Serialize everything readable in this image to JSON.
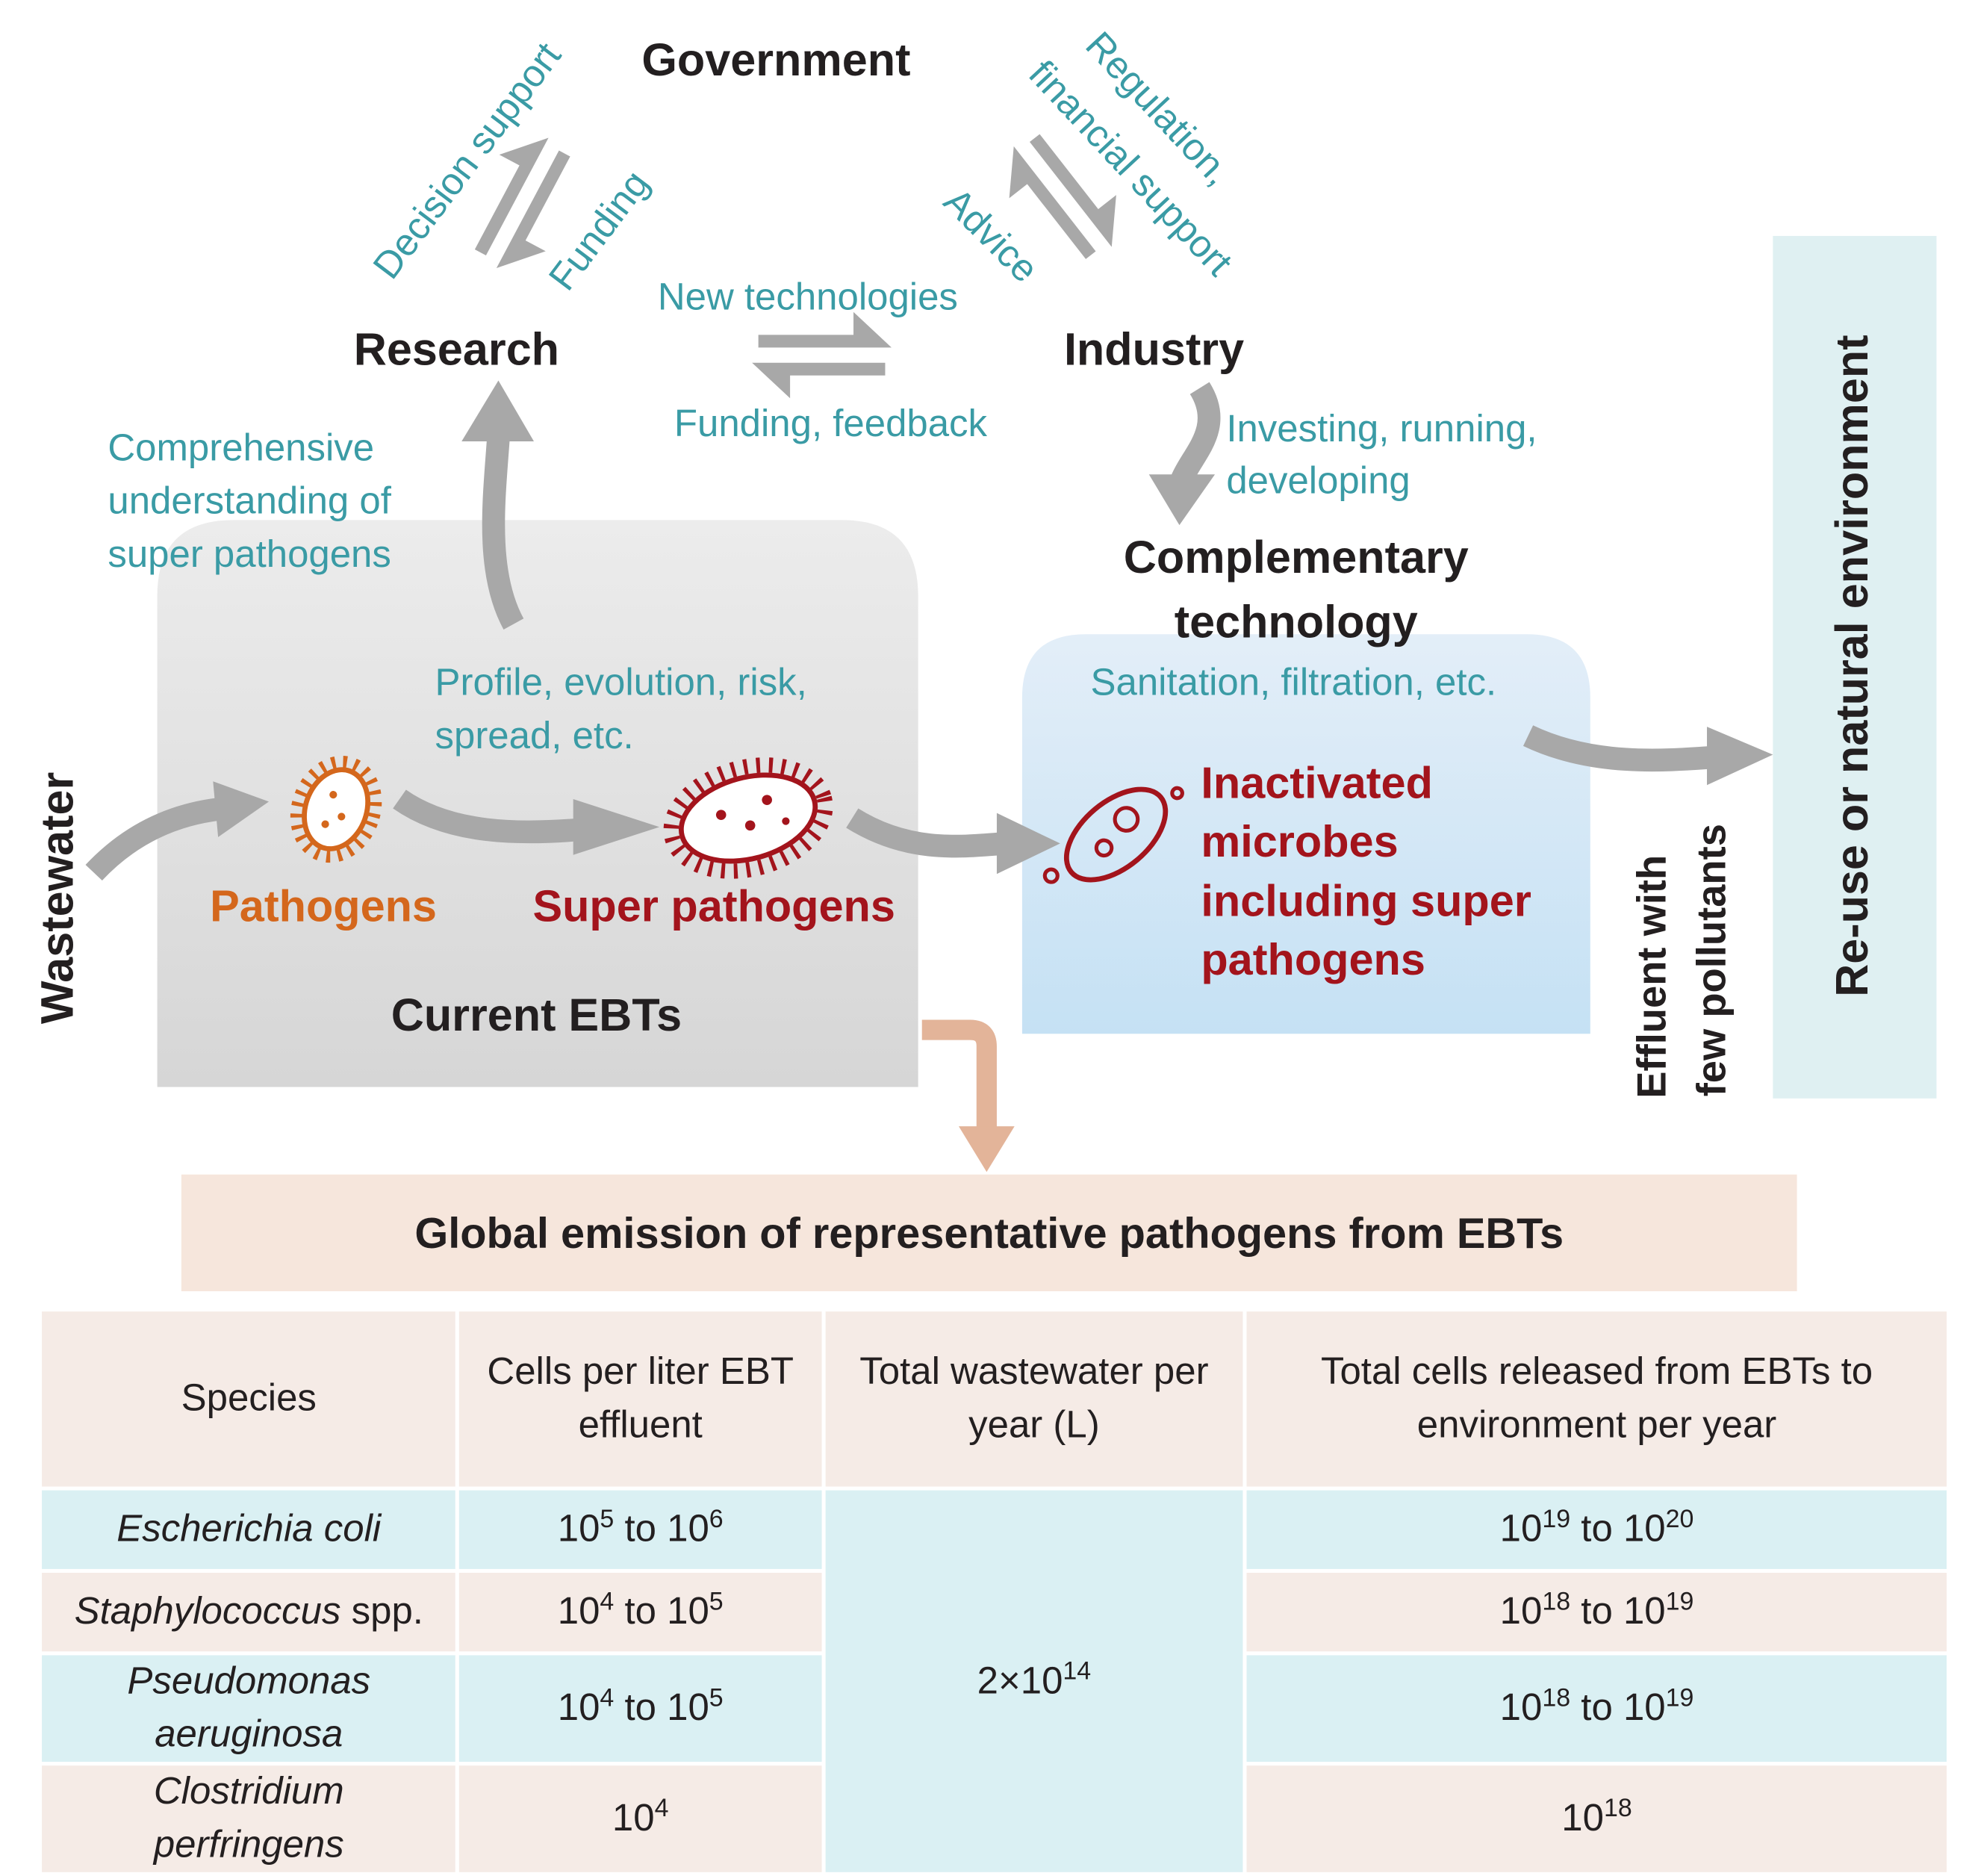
{
  "nodes": {
    "government": "Government",
    "research": "Research",
    "industry": "Industry",
    "complementary_technology": [
      "Complementary",
      "technology"
    ],
    "current_ebts": "Current EBTs",
    "wastewater": "Wastewater",
    "reuse": "Re-use or natural environment",
    "effluent": [
      "Effluent with",
      "few pollutants"
    ]
  },
  "flows": {
    "decision_support": "Decision support",
    "funding": "Funding",
    "regulation": [
      "Regulation,",
      "financial support"
    ],
    "advice": "Advice",
    "new_technologies": "New technologies",
    "funding_feedback": "Funding, feedback",
    "understanding": [
      "Comprehensive",
      "understanding of",
      "super pathogens"
    ],
    "investing": [
      "Investing, running,",
      "developing"
    ],
    "profile": [
      "Profile, evolution, risk,",
      "spread, etc."
    ],
    "sanitation": "Sanitation, filtration, etc."
  },
  "organisms": {
    "pathogens": "Pathogens",
    "super_pathogens": "Super pathogens",
    "inactivated": [
      "Inactivated",
      "microbes",
      "including super",
      "pathogens"
    ]
  },
  "table": {
    "title": "Global emission of representative pathogens from EBTs",
    "header": [
      "Species",
      "Cells per liter EBT effluent",
      "Total wastewater per year (L)",
      "Total cells released from EBTs to environment per year"
    ],
    "rows": [
      {
        "species": [
          {
            "text": "Escherichia coli",
            "style": "italic"
          }
        ],
        "cells_per_liter": [
          {
            "text": "10"
          },
          {
            "text": "5",
            "style": "sup"
          },
          {
            "text": " to 10"
          },
          {
            "text": "6",
            "style": "sup"
          }
        ],
        "released": [
          {
            "text": "10"
          },
          {
            "text": "19",
            "style": "sup"
          },
          {
            "text": " to 10"
          },
          {
            "text": "20",
            "style": "sup"
          }
        ]
      },
      {
        "species": [
          {
            "text": "Staphylococcus",
            "style": "italic"
          },
          {
            "text": " spp."
          }
        ],
        "cells_per_liter": [
          {
            "text": "10"
          },
          {
            "text": "4",
            "style": "sup"
          },
          {
            "text": " to 10"
          },
          {
            "text": "5",
            "style": "sup"
          }
        ],
        "released": [
          {
            "text": "10"
          },
          {
            "text": "18",
            "style": "sup"
          },
          {
            "text": " to 10"
          },
          {
            "text": "19",
            "style": "sup"
          }
        ]
      },
      {
        "species": [
          {
            "text": "Pseudomonas aeruginosa",
            "style": "italic"
          }
        ],
        "cells_per_liter": [
          {
            "text": "10"
          },
          {
            "text": "4",
            "style": "sup"
          },
          {
            "text": " to 10"
          },
          {
            "text": "5",
            "style": "sup"
          }
        ],
        "released": [
          {
            "text": "10"
          },
          {
            "text": "18",
            "style": "sup"
          },
          {
            "text": " to 10"
          },
          {
            "text": "19",
            "style": "sup"
          }
        ]
      },
      {
        "species": [
          {
            "text": "Clostridium perfringens",
            "style": "italic"
          }
        ],
        "cells_per_liter": [
          {
            "text": "10"
          },
          {
            "text": "4",
            "style": "sup"
          }
        ],
        "released": [
          {
            "text": "10"
          },
          {
            "text": "18",
            "style": "sup"
          }
        ]
      }
    ],
    "total_wastewater": [
      {
        "text": "2×10"
      },
      {
        "text": "14",
        "style": "sup"
      }
    ]
  }
}
